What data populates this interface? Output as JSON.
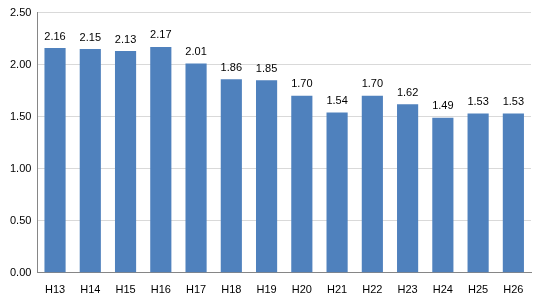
{
  "chart_data": {
    "type": "bar",
    "categories": [
      "H13",
      "H14",
      "H15",
      "H16",
      "H17",
      "H18",
      "H19",
      "H20",
      "H21",
      "H22",
      "H23",
      "H24",
      "H25",
      "H26"
    ],
    "values": [
      2.16,
      2.15,
      2.13,
      2.17,
      2.01,
      1.86,
      1.85,
      1.7,
      1.54,
      1.7,
      1.62,
      1.49,
      1.53,
      1.53
    ],
    "value_labels": [
      "2.16",
      "2.15",
      "2.13",
      "2.17",
      "2.01",
      "1.86",
      "1.85",
      "1.70",
      "1.54",
      "1.70",
      "1.62",
      "1.49",
      "1.53",
      "1.53"
    ],
    "color": "#4f81bd",
    "ylim": [
      0,
      2.5
    ],
    "yticks": [
      {
        "value": 0,
        "label": "0.00"
      },
      {
        "value": 0.5,
        "label": "0.50"
      },
      {
        "value": 1,
        "label": "1.00"
      },
      {
        "value": 1.5,
        "label": "1.50"
      },
      {
        "value": 2,
        "label": "2.00"
      },
      {
        "value": 2.5,
        "label": "2.50"
      }
    ],
    "grid": true,
    "data_labels": true
  }
}
